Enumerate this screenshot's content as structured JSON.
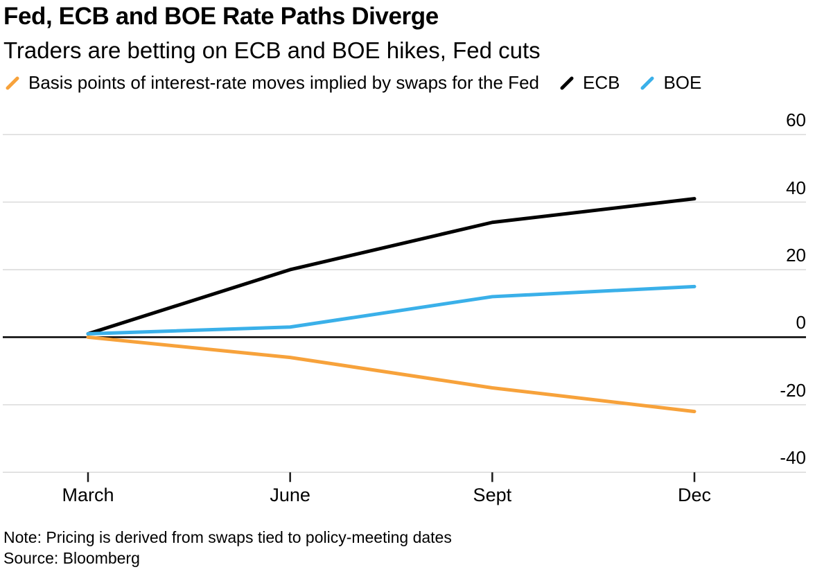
{
  "header": {
    "title": "Fed, ECB and BOE Rate Paths Diverge",
    "subtitle": "Traders are betting on ECB and BOE hikes, Fed cuts"
  },
  "legend": {
    "items": [
      {
        "label": "Basis points of interest-rate moves implied by swaps for the Fed",
        "color": "#F7A23B",
        "series": "Fed"
      },
      {
        "label": "ECB",
        "color": "#000000",
        "series": "ECB"
      },
      {
        "label": "BOE",
        "color": "#3AB0E9",
        "series": "BOE"
      }
    ]
  },
  "chart_data": {
    "type": "line",
    "title": "Fed, ECB and BOE Rate Paths Diverge",
    "subtitle": "Traders are betting on ECB and BOE hikes, Fed cuts",
    "categories": [
      "March",
      "June",
      "Sept",
      "Dec"
    ],
    "series": [
      {
        "name": "Fed",
        "color": "#F7A23B",
        "values": [
          0,
          -6,
          -15,
          -22
        ]
      },
      {
        "name": "ECB",
        "color": "#000000",
        "values": [
          1,
          20,
          34,
          41
        ]
      },
      {
        "name": "BOE",
        "color": "#3AB0E9",
        "values": [
          1,
          3,
          12,
          15
        ]
      }
    ],
    "ylabel": "Basis points of interest-rate moves implied by swaps",
    "yticks": [
      60,
      40,
      20,
      0,
      -20,
      -40
    ],
    "ylim": [
      -45,
      62
    ],
    "grid": true,
    "zero_line": true,
    "legend_position": "top",
    "ytick_side": "right"
  },
  "footer": {
    "note": "Note: Pricing is derived from swaps tied to policy-meeting dates",
    "source": "Source: Bloomberg"
  },
  "colors": {
    "fed_orange": "#F7A23B",
    "ecb_black": "#000000",
    "boe_blue": "#3AB0E9",
    "gridline_gray": "#d9d9d9",
    "text_black": "#000000"
  }
}
